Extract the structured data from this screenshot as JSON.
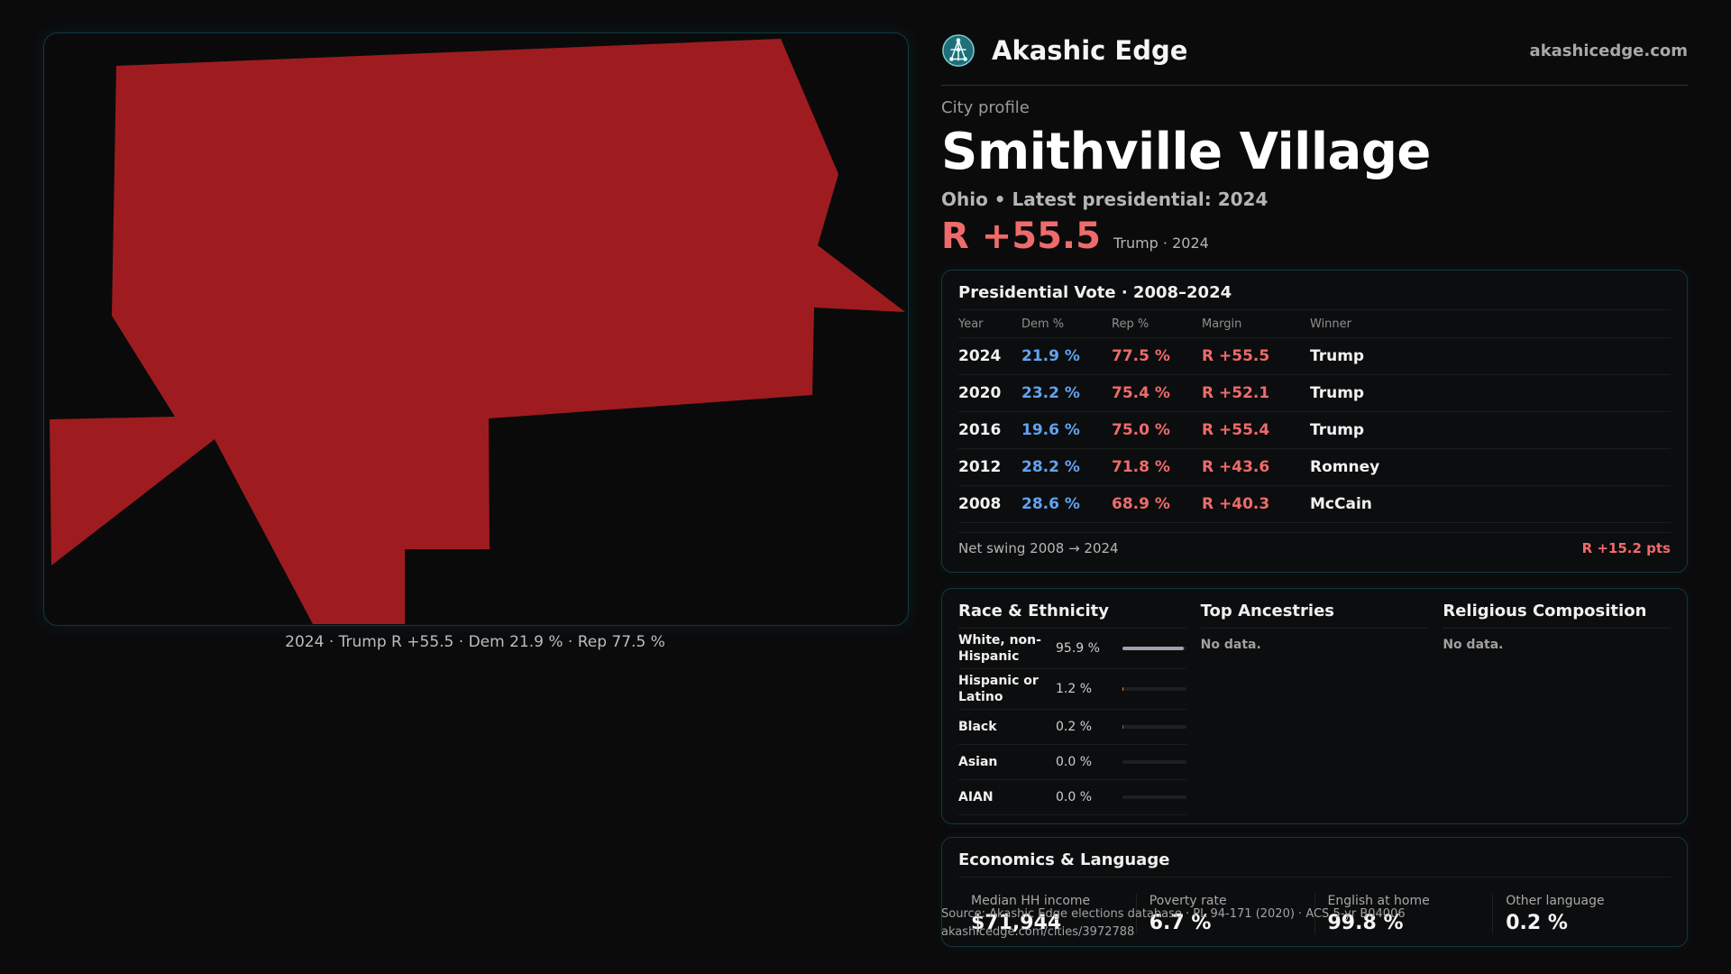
{
  "map": {
    "caption": "2024 · Trump R +55.5 · Dem 21.9 % · Rep 77.5 %",
    "fill_color": "#9e1c1f"
  },
  "header": {
    "brand_name": "Akashic Edge",
    "brand_url": "akashicedge.com",
    "logo_icon": "network-globe-icon"
  },
  "profile": {
    "kicker": "City profile",
    "city_name": "Smithville Village",
    "subtitle": "Ohio • Latest presidential: 2024",
    "margin": "R +55.5",
    "margin_note": "Trump · 2024"
  },
  "presidential": {
    "title": "Presidential Vote · 2008–2024",
    "columns": [
      "Year",
      "Dem %",
      "Rep %",
      "Margin",
      "Winner"
    ],
    "rows": [
      {
        "year": "2024",
        "dem": "21.9 %",
        "rep": "77.5 %",
        "margin": "R +55.5",
        "winner": "Trump"
      },
      {
        "year": "2020",
        "dem": "23.2 %",
        "rep": "75.4 %",
        "margin": "R +52.1",
        "winner": "Trump"
      },
      {
        "year": "2016",
        "dem": "19.6 %",
        "rep": "75.0 %",
        "margin": "R +55.4",
        "winner": "Trump"
      },
      {
        "year": "2012",
        "dem": "28.2 %",
        "rep": "71.8 %",
        "margin": "R +43.6",
        "winner": "Romney"
      },
      {
        "year": "2008",
        "dem": "28.6 %",
        "rep": "68.9 %",
        "margin": "R +40.3",
        "winner": "McCain"
      }
    ],
    "swing_label": "Net swing 2008 → 2024",
    "swing_value": "R +15.2 pts"
  },
  "race": {
    "title": "Race & Ethnicity",
    "rows": [
      {
        "label": "White, non-Hispanic",
        "pct": "95.9 %",
        "value": 95.9,
        "color": "#9aa3ad"
      },
      {
        "label": "Hispanic or Latino",
        "pct": "1.2 %",
        "value": 1.2,
        "color": "#e0863a"
      },
      {
        "label": "Black",
        "pct": "0.2 %",
        "value": 0.2,
        "color": "#6c6c6c"
      },
      {
        "label": "Asian",
        "pct": "0.0 %",
        "value": 0.0,
        "color": "#6c6c6c"
      },
      {
        "label": "AIAN",
        "pct": "0.0 %",
        "value": 0.0,
        "color": "#6c6c6c"
      }
    ]
  },
  "ancestries": {
    "title": "Top Ancestries",
    "empty": "No data."
  },
  "religion": {
    "title": "Religious Composition",
    "empty": "No data."
  },
  "economics": {
    "title": "Economics & Language",
    "cells": [
      {
        "label": "Median HH income",
        "value": "$71,944"
      },
      {
        "label": "Poverty rate",
        "value": "6.7 %"
      },
      {
        "label": "English at home",
        "value": "99.8 %"
      },
      {
        "label": "Other language",
        "value": "0.2 %"
      }
    ]
  },
  "source": {
    "line1": "Source: Akashic Edge elections database · PL 94-171 (2020) · ACS 5-yr B04006",
    "line2": "akashicedge.com/cities/3972788"
  }
}
